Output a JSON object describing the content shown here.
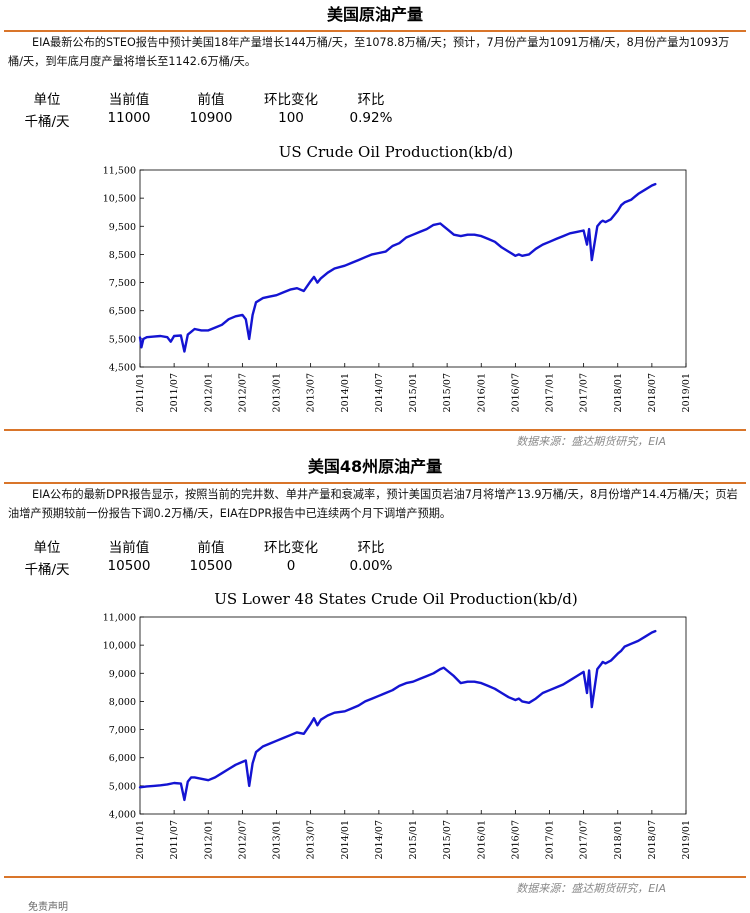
{
  "sections": [
    {
      "title": "美国原油产量",
      "description": "EIA最新公布的STEO报告中预计美国18年产量增长144万桶/天，至1078.8万桶/天；预计，7月份产量为1091万桶/天，8月份产量为1093万桶/天，到年底月度产量将增长至1142.6万桶/天。",
      "metrics": {
        "headers": [
          "单位",
          "当前值",
          "前值",
          "环比变化",
          "环比"
        ],
        "values": [
          "千桶/天",
          "11000",
          "10900",
          "100",
          "0.92%"
        ]
      },
      "source": "数据来源：盛达期货研究，EIA"
    },
    {
      "title": "美国48州原油产量",
      "description": "EIA公布的最新DPR报告显示，按照当前的完井数、单井产量和衰减率，预计美国页岩油7月将增产13.9万桶/天，8月份增产14.4万桶/天；页岩油增产预期较前一份报告下调0.2万桶/天，EIA在DPR报告中已连续两个月下调增产预期。",
      "metrics": {
        "headers": [
          "单位",
          "当前值",
          "前值",
          "环比变化",
          "环比"
        ],
        "values": [
          "千桶/天",
          "10500",
          "10500",
          "0",
          "0.00%"
        ]
      },
      "source": "数据来源：盛达期货研究，EIA"
    }
  ],
  "footer_fragment": "免责声明",
  "chart_data": [
    {
      "type": "line",
      "title": "US Crude Oil Production(kb/d)",
      "xlabel": "",
      "ylabel": "",
      "grid": false,
      "line_color": "#1414d2",
      "x_ticks": [
        "2011/01",
        "2011/07",
        "2012/01",
        "2012/07",
        "2013/01",
        "2013/07",
        "2014/01",
        "2014/07",
        "2015/01",
        "2015/07",
        "2016/01",
        "2016/07",
        "2017/01",
        "2017/07",
        "2018/01",
        "2018/07",
        "2019/01"
      ],
      "y_ticks": [
        "4,500",
        "5,500",
        "6,500",
        "7,500",
        "8,500",
        "9,500",
        "10,500",
        "11,500"
      ],
      "ylim": [
        4500,
        11500
      ],
      "xlim": [
        2011.0,
        2019.0
      ],
      "series": [
        {
          "x": [
            2011.0,
            2011.02,
            2011.05,
            2011.1,
            2011.2,
            2011.3,
            2011.4,
            2011.45,
            2011.5,
            2011.6,
            2011.65,
            2011.7,
            2011.75,
            2011.8,
            2011.9,
            2012.0,
            2012.1,
            2012.2,
            2012.3,
            2012.4,
            2012.5,
            2012.55,
            2012.6,
            2012.65,
            2012.7,
            2012.8,
            2012.9,
            2013.0,
            2013.1,
            2013.2,
            2013.3,
            2013.4,
            2013.5,
            2013.55,
            2013.6,
            2013.65,
            2013.75,
            2013.85,
            2014.0,
            2014.1,
            2014.2,
            2014.3,
            2014.4,
            2014.5,
            2014.6,
            2014.7,
            2014.8,
            2014.9,
            2015.0,
            2015.1,
            2015.2,
            2015.3,
            2015.4,
            2015.45,
            2015.5,
            2015.6,
            2015.7,
            2015.8,
            2015.9,
            2016.0,
            2016.1,
            2016.2,
            2016.3,
            2016.4,
            2016.5,
            2016.55,
            2016.6,
            2016.7,
            2016.8,
            2016.9,
            2017.0,
            2017.1,
            2017.2,
            2017.3,
            2017.4,
            2017.5,
            2017.55,
            2017.58,
            2017.62,
            2017.7,
            2017.75,
            2017.78,
            2017.82,
            2017.9,
            2018.0,
            2018.05,
            2018.1,
            2018.2,
            2018.3,
            2018.4,
            2018.5,
            2018.55
          ],
          "values": [
            5550,
            5200,
            5500,
            5560,
            5580,
            5600,
            5560,
            5400,
            5600,
            5620,
            5050,
            5650,
            5750,
            5850,
            5800,
            5800,
            5900,
            6000,
            6200,
            6300,
            6350,
            6200,
            5500,
            6350,
            6800,
            6950,
            7000,
            7050,
            7150,
            7250,
            7300,
            7200,
            7550,
            7700,
            7500,
            7650,
            7850,
            8000,
            8100,
            8200,
            8300,
            8400,
            8500,
            8550,
            8600,
            8800,
            8900,
            9100,
            9200,
            9300,
            9400,
            9550,
            9600,
            9500,
            9400,
            9200,
            9150,
            9200,
            9200,
            9150,
            9050,
            8950,
            8750,
            8600,
            8450,
            8500,
            8450,
            8500,
            8700,
            8850,
            8950,
            9050,
            9150,
            9250,
            9300,
            9350,
            8850,
            9400,
            8300,
            9500,
            9650,
            9700,
            9650,
            9750,
            10050,
            10250,
            10350,
            10450,
            10650,
            10800,
            10950,
            11000
          ]
        }
      ]
    },
    {
      "type": "line",
      "title": "US Lower 48 States Crude Oil Production(kb/d)",
      "xlabel": "",
      "ylabel": "",
      "grid": false,
      "line_color": "#1414d2",
      "x_ticks": [
        "2011/01",
        "2011/07",
        "2012/01",
        "2012/07",
        "2013/01",
        "2013/07",
        "2014/01",
        "2014/07",
        "2015/01",
        "2015/07",
        "2016/01",
        "2016/07",
        "2017/01",
        "2017/07",
        "2018/01",
        "2018/07",
        "2019/01"
      ],
      "y_ticks": [
        "4,000",
        "5,000",
        "6,000",
        "7,000",
        "8,000",
        "9,000",
        "10,000",
        "11,000"
      ],
      "ylim": [
        4000,
        11000
      ],
      "xlim": [
        2011.0,
        2019.0
      ],
      "series": [
        {
          "x": [
            2011.0,
            2011.1,
            2011.2,
            2011.3,
            2011.4,
            2011.5,
            2011.6,
            2011.65,
            2011.7,
            2011.75,
            2011.8,
            2011.9,
            2012.0,
            2012.1,
            2012.2,
            2012.3,
            2012.4,
            2012.5,
            2012.55,
            2012.6,
            2012.65,
            2012.7,
            2012.8,
            2012.9,
            2013.0,
            2013.1,
            2013.2,
            2013.3,
            2013.4,
            2013.5,
            2013.55,
            2013.6,
            2013.65,
            2013.75,
            2013.85,
            2014.0,
            2014.1,
            2014.2,
            2014.3,
            2014.4,
            2014.5,
            2014.6,
            2014.7,
            2014.8,
            2014.9,
            2015.0,
            2015.1,
            2015.2,
            2015.3,
            2015.4,
            2015.45,
            2015.5,
            2015.6,
            2015.7,
            2015.8,
            2015.9,
            2016.0,
            2016.1,
            2016.2,
            2016.3,
            2016.4,
            2016.5,
            2016.55,
            2016.6,
            2016.7,
            2016.8,
            2016.9,
            2017.0,
            2017.1,
            2017.2,
            2017.3,
            2017.4,
            2017.5,
            2017.55,
            2017.58,
            2017.62,
            2017.7,
            2017.75,
            2017.78,
            2017.82,
            2017.9,
            2018.0,
            2018.05,
            2018.1,
            2018.2,
            2018.3,
            2018.4,
            2018.5,
            2018.55
          ],
          "values": [
            4950,
            4980,
            5000,
            5020,
            5050,
            5100,
            5080,
            4500,
            5150,
            5300,
            5300,
            5250,
            5200,
            5300,
            5450,
            5600,
            5750,
            5850,
            5900,
            5000,
            5800,
            6200,
            6400,
            6500,
            6600,
            6700,
            6800,
            6900,
            6850,
            7200,
            7400,
            7150,
            7350,
            7500,
            7600,
            7650,
            7750,
            7850,
            8000,
            8100,
            8200,
            8300,
            8400,
            8550,
            8650,
            8700,
            8800,
            8900,
            9000,
            9150,
            9200,
            9100,
            8900,
            8650,
            8700,
            8700,
            8650,
            8550,
            8450,
            8300,
            8150,
            8050,
            8100,
            8000,
            7950,
            8100,
            8300,
            8400,
            8500,
            8600,
            8750,
            8900,
            9050,
            8300,
            9100,
            7800,
            9150,
            9300,
            9400,
            9350,
            9450,
            9700,
            9800,
            9950,
            10050,
            10150,
            10300,
            10450,
            10500
          ]
        }
      ]
    }
  ]
}
